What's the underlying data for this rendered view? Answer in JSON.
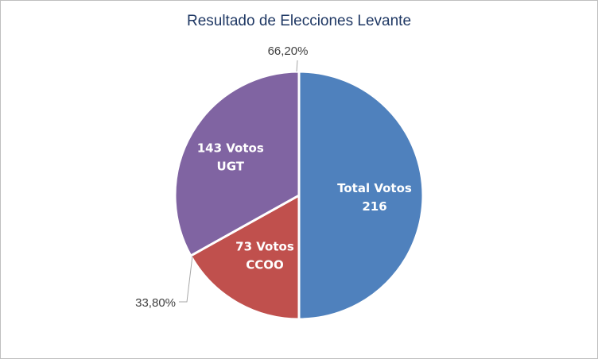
{
  "chart_data": {
    "type": "pie",
    "title": "Resultado de Elecciones Levante",
    "slices": [
      {
        "label_line1": "Total Votos",
        "label_line2": "216",
        "value": 216,
        "color": "#4f81bd"
      },
      {
        "label_line1": "73 Votos",
        "label_line2": "CCOO",
        "value": 73,
        "color": "#c0504d"
      },
      {
        "label_line1": "143 Votos",
        "label_line2": "UGT",
        "value": 143,
        "color": "#8064a2"
      }
    ],
    "percent_labels": [
      {
        "text": "66,20%"
      },
      {
        "text": "33,80%"
      }
    ]
  }
}
